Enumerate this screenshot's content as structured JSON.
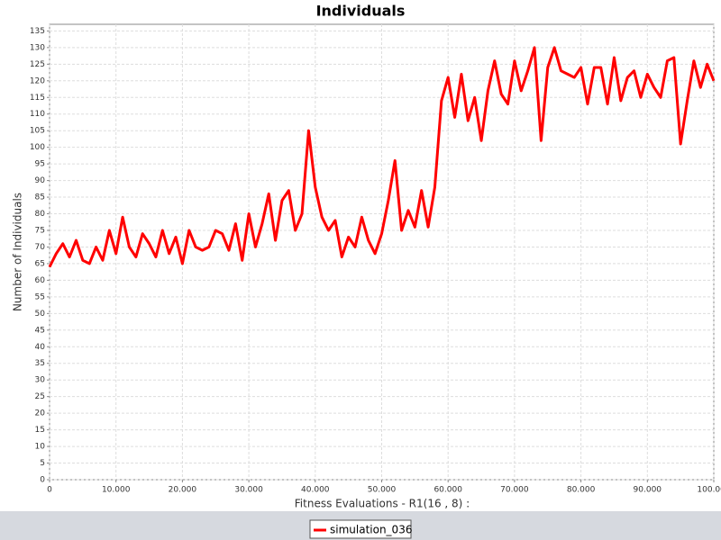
{
  "chart_data": {
    "type": "line",
    "title": "Individuals",
    "x_label": "Fitness Evaluations - R1(16 , 8) :",
    "y_label": "Number of Individuals",
    "x": [
      0,
      1000,
      2000,
      3000,
      4000,
      5000,
      6000,
      7000,
      8000,
      9000,
      10000,
      11000,
      12000,
      13000,
      14000,
      15000,
      16000,
      17000,
      18000,
      19000,
      20000,
      21000,
      22000,
      23000,
      24000,
      25000,
      26000,
      27000,
      28000,
      29000,
      30000,
      31000,
      32000,
      33000,
      34000,
      35000,
      36000,
      37000,
      38000,
      39000,
      40000,
      41000,
      42000,
      43000,
      44000,
      45000,
      46000,
      47000,
      48000,
      49000,
      50000,
      51000,
      52000,
      53000,
      54000,
      55000,
      56000,
      57000,
      58000,
      59000,
      60000,
      61000,
      62000,
      63000,
      64000,
      65000,
      66000,
      67000,
      68000,
      69000,
      70000,
      71000,
      72000,
      73000,
      74000,
      75000,
      76000,
      77000,
      78000,
      79000,
      80000,
      81000,
      82000,
      83000,
      84000,
      85000,
      86000,
      87000,
      88000,
      89000,
      90000,
      91000,
      92000,
      93000,
      94000,
      95000,
      96000,
      97000,
      98000,
      99000,
      100000
    ],
    "series": [
      {
        "name": "simulation_036",
        "color": "#ff0000",
        "values": [
          64,
          68,
          71,
          67,
          72,
          66,
          65,
          70,
          66,
          75,
          68,
          79,
          70,
          67,
          74,
          71,
          67,
          75,
          68,
          73,
          65,
          75,
          70,
          69,
          70,
          75,
          74,
          69,
          77,
          66,
          80,
          70,
          77,
          86,
          72,
          84,
          87,
          75,
          80,
          105,
          88,
          79,
          75,
          78,
          67,
          73,
          70,
          79,
          72,
          68,
          74,
          84,
          96,
          75,
          81,
          76,
          87,
          76,
          88,
          114,
          121,
          109,
          122,
          108,
          115,
          102,
          117,
          126,
          116,
          113,
          126,
          117,
          123,
          130,
          102,
          124,
          130,
          123,
          122,
          121,
          124,
          113,
          124,
          124,
          113,
          127,
          114,
          121,
          123,
          115,
          122,
          118,
          115,
          126,
          127,
          101,
          114,
          126,
          118,
          125,
          120
        ]
      }
    ],
    "xlim": [
      0,
      100000
    ],
    "ylim": [
      0,
      137
    ],
    "xticks": [
      {
        "value": 0,
        "label": "0"
      },
      {
        "value": 10000,
        "label": "10.000"
      },
      {
        "value": 20000,
        "label": "20.000"
      },
      {
        "value": 30000,
        "label": "30.000"
      },
      {
        "value": 40000,
        "label": "40.000"
      },
      {
        "value": 50000,
        "label": "50.000"
      },
      {
        "value": 60000,
        "label": "60.000"
      },
      {
        "value": 70000,
        "label": "70.000"
      },
      {
        "value": 80000,
        "label": "80.000"
      },
      {
        "value": 90000,
        "label": "90.000"
      },
      {
        "value": 100000,
        "label": "100.000"
      }
    ],
    "yticks": [
      0,
      5,
      10,
      15,
      20,
      25,
      30,
      35,
      40,
      45,
      50,
      55,
      60,
      65,
      70,
      75,
      80,
      85,
      90,
      95,
      100,
      105,
      110,
      115,
      120,
      125,
      130,
      135
    ],
    "grid": true,
    "legend": "bottom"
  }
}
